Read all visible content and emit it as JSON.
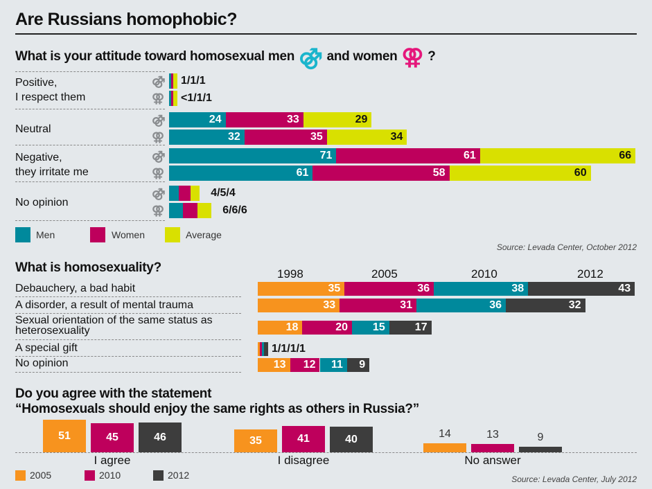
{
  "title": "Are Russians homophobic?",
  "section1": {
    "question_prefix": "What is your attitude toward homosexual men",
    "question_middle": "and women",
    "question_suffix": "?",
    "men_symbol": "⚣",
    "women_symbol": "⚢",
    "source": "Source: Levada Center, October 2012",
    "legend": [
      {
        "label": "Men",
        "color": "#00899c"
      },
      {
        "label": "Women",
        "color": "#be005c"
      },
      {
        "label": "Average",
        "color": "#d9e000"
      }
    ]
  },
  "section2": {
    "question": "What is homosexuality?",
    "years": [
      {
        "label": "1998",
        "color": "#f7931e"
      },
      {
        "label": "2005",
        "color": "#be005c"
      },
      {
        "label": "2010",
        "color": "#00899c"
      },
      {
        "label": "2012",
        "color": "#3d3d3d"
      }
    ]
  },
  "section3": {
    "question_line1": "Do you agree with the statement",
    "question_line2": "“Homosexuals should enjoy the same rights as others in Russia?”",
    "source": "Source: Levada Center, July 2012",
    "legend": [
      {
        "label": "2005",
        "color": "#f7931e"
      },
      {
        "label": "2010",
        "color": "#be005c"
      },
      {
        "label": "2012",
        "color": "#3d3d3d"
      }
    ]
  },
  "chart_data": [
    {
      "type": "bar",
      "orientation": "horizontal-stacked",
      "title": "What is your attitude toward homosexual men and women?",
      "series_names": [
        "Men",
        "Women",
        "Average"
      ],
      "categories": [
        {
          "label_lines": [
            "Positive,",
            "I respect them"
          ],
          "rows": [
            {
              "target": "men",
              "values": [
                1,
                1,
                1
              ],
              "label": "1/1/1",
              "label_outside": true
            },
            {
              "target": "women",
              "values": [
                0.5,
                1,
                1
              ],
              "label": "<1/1/1",
              "label_outside": true
            }
          ]
        },
        {
          "label_lines": [
            "Neutral"
          ],
          "rows": [
            {
              "target": "men",
              "values": [
                24,
                33,
                29
              ]
            },
            {
              "target": "women",
              "values": [
                32,
                35,
                34
              ]
            }
          ]
        },
        {
          "label_lines": [
            "Negative,",
            "they irritate me"
          ],
          "rows": [
            {
              "target": "men",
              "values": [
                71,
                61,
                66
              ]
            },
            {
              "target": "women",
              "values": [
                61,
                58,
                60
              ]
            }
          ]
        },
        {
          "label_lines": [
            "No opinion"
          ],
          "rows": [
            {
              "target": "men",
              "values": [
                4,
                5,
                4
              ],
              "label": "4/5/4",
              "label_outside": true
            },
            {
              "target": "women",
              "values": [
                6,
                6,
                6
              ],
              "label": "6/6/6",
              "label_outside": true
            }
          ]
        }
      ],
      "legend": "bottom-left"
    },
    {
      "type": "bar",
      "orientation": "horizontal-stacked",
      "title": "What is homosexuality?",
      "series_names": [
        "1998",
        "2005",
        "2010",
        "2012"
      ],
      "categories": [
        {
          "label": "Debauchery, a bad habit",
          "values": [
            35,
            36,
            38,
            43
          ]
        },
        {
          "label": "A disorder, a result of mental trauma",
          "values": [
            33,
            31,
            36,
            32
          ]
        },
        {
          "label": "Sexual orientation of the same status as heterosexuality",
          "values": [
            18,
            20,
            15,
            17
          ]
        },
        {
          "label": "A special gift",
          "values": [
            1,
            1,
            1,
            1
          ],
          "label_text": "1/1/1/1",
          "label_outside": true
        },
        {
          "label": "No opinion",
          "values": [
            13,
            12,
            11,
            9
          ]
        }
      ],
      "legend": "top"
    },
    {
      "type": "bar",
      "orientation": "vertical-grouped",
      "title": "Do you agree with the statement “Homosexuals should enjoy the same rights as others in Russia?”",
      "series_names": [
        "2005",
        "2010",
        "2012"
      ],
      "categories": [
        {
          "label": "I agree",
          "values": [
            51,
            45,
            46
          ],
          "label_inside": true
        },
        {
          "label": "I disagree",
          "values": [
            35,
            41,
            40
          ],
          "label_inside": true
        },
        {
          "label": "No answer",
          "values": [
            14,
            13,
            9
          ],
          "label_inside": false
        }
      ],
      "legend": "bottom-left"
    }
  ]
}
